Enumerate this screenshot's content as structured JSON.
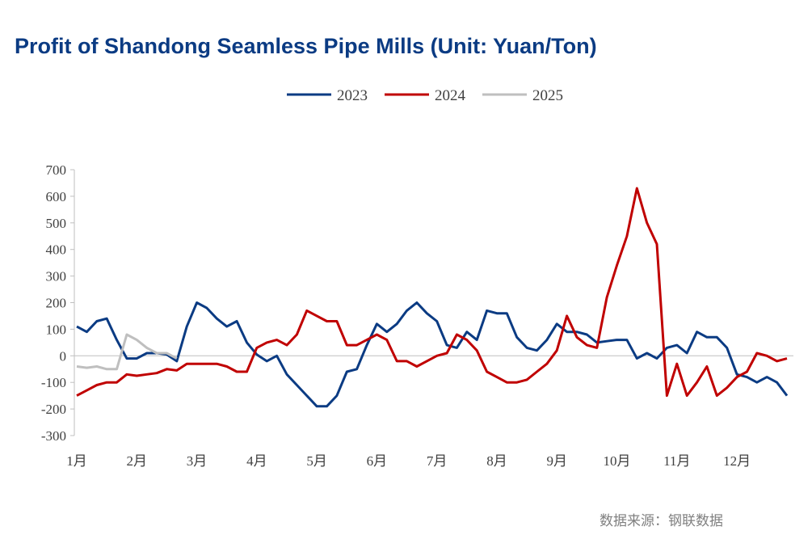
{
  "chart_data": {
    "type": "line",
    "title": "Profit of Shandong Seamless Pipe Mills (Unit: Yuan/Ton)",
    "source": "数据来源：钢联数据",
    "categories": [
      "1月",
      null,
      null,
      null,
      null,
      null,
      "2月",
      null,
      null,
      null,
      null,
      null,
      "3月",
      null,
      null,
      null,
      null,
      null,
      "4月",
      null,
      null,
      null,
      null,
      null,
      "5月",
      null,
      null,
      null,
      null,
      null,
      "6月",
      null,
      null,
      null,
      null,
      null,
      "7月",
      null,
      null,
      null,
      null,
      null,
      "8月",
      null,
      null,
      null,
      null,
      null,
      "9月",
      null,
      null,
      null,
      null,
      null,
      "10月",
      null,
      null,
      null,
      null,
      null,
      "11月",
      null,
      null,
      null,
      null,
      null,
      "12月",
      null,
      null,
      null,
      null,
      null
    ],
    "series": [
      {
        "name": "2023",
        "color": "#0b3b83",
        "values": [
          110,
          90,
          130,
          140,
          60,
          -10,
          -10,
          10,
          10,
          5,
          -20,
          110,
          200,
          180,
          140,
          110,
          130,
          50,
          5,
          -20,
          0,
          -70,
          -110,
          -150,
          -190,
          -190,
          -150,
          -60,
          -50,
          40,
          120,
          90,
          120,
          170,
          200,
          160,
          130,
          40,
          30,
          90,
          60,
          170,
          160,
          160,
          70,
          30,
          20,
          60,
          120,
          90,
          90,
          80,
          50,
          55,
          60,
          60,
          -10,
          10,
          -10,
          30,
          40,
          10,
          90,
          70,
          70,
          30,
          -70,
          -80,
          -100,
          -80,
          -100,
          -150
        ]
      },
      {
        "name": "2024",
        "color": "#c00000",
        "values": [
          -150,
          -130,
          -110,
          -100,
          -100,
          -70,
          -75,
          -70,
          -65,
          -50,
          -55,
          -30,
          -30,
          -30,
          -30,
          -40,
          -60,
          -60,
          30,
          50,
          60,
          40,
          80,
          170,
          150,
          130,
          130,
          40,
          40,
          60,
          80,
          60,
          -20,
          -20,
          -40,
          -20,
          0,
          10,
          80,
          60,
          20,
          -60,
          -80,
          -100,
          -100,
          -90,
          -60,
          -30,
          20,
          150,
          70,
          40,
          30,
          220,
          340,
          450,
          630,
          500,
          420,
          -150,
          -30,
          -150,
          -100,
          -40,
          -150,
          -120,
          -80,
          -60,
          10,
          0,
          -20,
          -10
        ]
      },
      {
        "name": "2025",
        "color": "#bfbfbf",
        "values": [
          -40,
          -45,
          -40,
          -50,
          -50,
          80,
          60,
          30,
          10,
          10,
          -10,
          null,
          null,
          null,
          null,
          null,
          null,
          null,
          null,
          null,
          null,
          null,
          null,
          null,
          null,
          null,
          null,
          null,
          null,
          null,
          null,
          null,
          null,
          null,
          null,
          null,
          null,
          null,
          null,
          null,
          null,
          null,
          null,
          null,
          null,
          null,
          null,
          null,
          null,
          null,
          null,
          null,
          null,
          null,
          null,
          null,
          null,
          null,
          null,
          null,
          null,
          null,
          null,
          null,
          null,
          null,
          null,
          null,
          null,
          null,
          null,
          null
        ]
      }
    ],
    "ylim": [
      -300,
      700
    ],
    "yticks": [
      -300,
      -200,
      -100,
      0,
      100,
      200,
      300,
      400,
      500,
      600,
      700
    ],
    "grid": false,
    "legend": "top"
  }
}
